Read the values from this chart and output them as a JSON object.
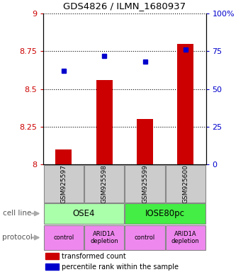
{
  "title": "GDS4826 / ILMN_1680937",
  "samples": [
    "GSM925597",
    "GSM925598",
    "GSM925599",
    "GSM925600"
  ],
  "bar_values": [
    8.1,
    8.56,
    8.3,
    8.8
  ],
  "bar_base": 8.0,
  "dot_values": [
    8.62,
    8.72,
    8.68,
    8.76
  ],
  "ylim_left": [
    8.0,
    9.0
  ],
  "ylim_right": [
    0,
    100
  ],
  "yticks_left": [
    8.0,
    8.25,
    8.5,
    8.75,
    9.0
  ],
  "yticks_right": [
    0,
    25,
    50,
    75,
    100
  ],
  "ytick_labels_left": [
    "8",
    "8.25",
    "8.5",
    "8.75",
    "9"
  ],
  "ytick_labels_right": [
    "0",
    "25",
    "50",
    "75",
    "100%"
  ],
  "bar_color": "#cc0000",
  "dot_color": "#0000cc",
  "cell_line_colors": [
    "#aaffaa",
    "#44ee44"
  ],
  "cell_lines": [
    "OSE4",
    "IOSE80pc"
  ],
  "cell_line_spans": [
    [
      0,
      2
    ],
    [
      2,
      4
    ]
  ],
  "protocol_color": "#ee88ee",
  "protocols": [
    "control",
    "ARID1A\ndepletion",
    "control",
    "ARID1A\ndepletion"
  ],
  "sample_box_color": "#cccccc",
  "legend_red_label": "transformed count",
  "legend_blue_label": "percentile rank within the sample",
  "cell_line_label": "cell line",
  "protocol_label": "protocol",
  "arrow_color": "#aaaaaa"
}
